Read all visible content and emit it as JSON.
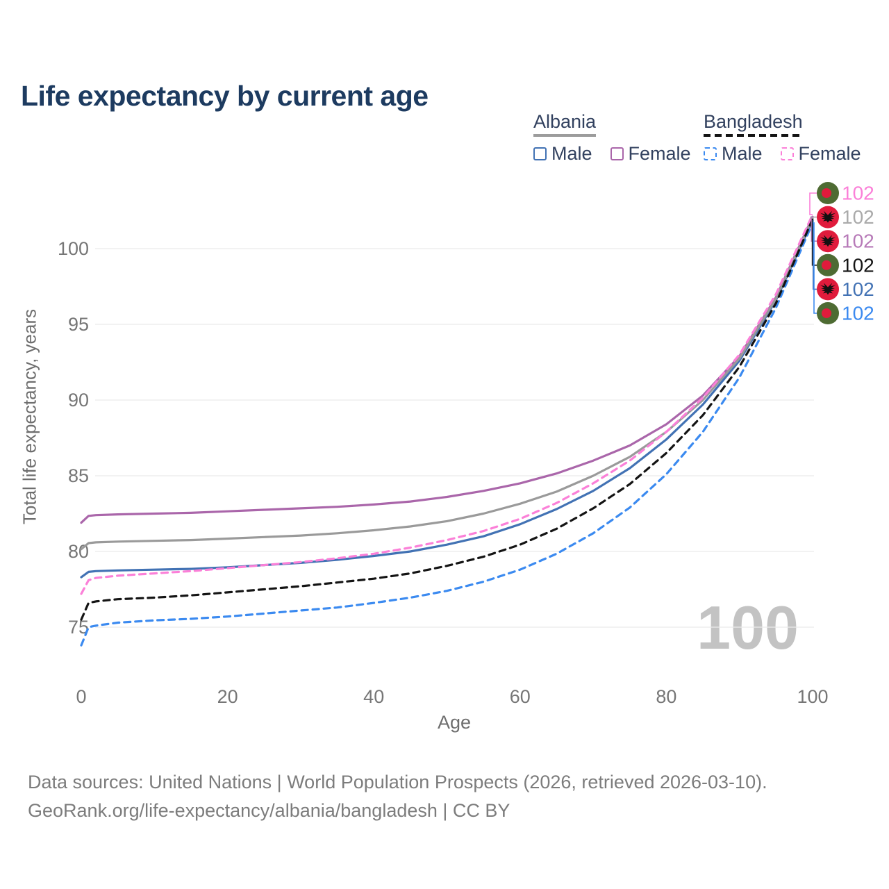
{
  "title": "Life expectancy by current age",
  "legend": {
    "groups": [
      {
        "id": "albania",
        "label": "Albania",
        "underline": "solid",
        "underline_color": "#9c9c9c",
        "items": [
          {
            "label": "Male",
            "color": "#4272b4",
            "dashed": false
          },
          {
            "label": "Female",
            "color": "#aa66aa",
            "dashed": false
          }
        ]
      },
      {
        "id": "bangladesh",
        "label": "Bangladesh",
        "underline": "dashed",
        "underline_color": "#141414",
        "items": [
          {
            "label": "Male",
            "color": "#3b8af0",
            "dashed": true
          },
          {
            "label": "Female",
            "color": "#fb80d8",
            "dashed": true
          }
        ]
      }
    ]
  },
  "chart_data": {
    "type": "line",
    "title": "Life expectancy by current age",
    "xlabel": "Age",
    "ylabel": "Total life expectancy, years",
    "x_ticks": [
      0,
      20,
      40,
      60,
      80,
      100
    ],
    "y_ticks": [
      75,
      80,
      85,
      90,
      95,
      100
    ],
    "xlim": [
      0,
      100
    ],
    "ylim": [
      73.5,
      103.5
    ],
    "grid": true,
    "legend_position": "top-right",
    "x": [
      0,
      1,
      2,
      5,
      10,
      15,
      20,
      25,
      30,
      35,
      40,
      45,
      50,
      55,
      60,
      65,
      70,
      75,
      80,
      85,
      90,
      95,
      100
    ],
    "series": [
      {
        "name": "Albania Male",
        "country": "albania",
        "sex": "male",
        "color": "#4272b4",
        "dashed": false,
        "values": [
          78.3,
          78.65,
          78.7,
          78.75,
          78.8,
          78.85,
          78.95,
          79.1,
          79.25,
          79.45,
          79.7,
          80.0,
          80.45,
          81.0,
          81.8,
          82.8,
          84.0,
          85.5,
          87.4,
          89.7,
          92.6,
          96.6,
          101.85
        ]
      },
      {
        "name": "Albania Female",
        "country": "albania",
        "sex": "female",
        "color": "#aa66aa",
        "dashed": false,
        "values": [
          81.9,
          82.35,
          82.4,
          82.45,
          82.5,
          82.55,
          82.65,
          82.75,
          82.85,
          82.95,
          83.1,
          83.3,
          83.6,
          84.0,
          84.5,
          85.15,
          86.0,
          87.0,
          88.4,
          90.3,
          92.9,
          96.8,
          102.1
        ]
      },
      {
        "name": "Albania Total",
        "country": "albania",
        "sex": "total",
        "color": "#9a9a9a",
        "dashed": false,
        "values": [
          80.15,
          80.55,
          80.6,
          80.65,
          80.7,
          80.75,
          80.85,
          80.95,
          81.05,
          81.2,
          81.4,
          81.65,
          82.0,
          82.5,
          83.15,
          83.95,
          85.0,
          86.25,
          87.9,
          90.0,
          92.75,
          96.7,
          102.0
        ]
      },
      {
        "name": "Bangladesh Male",
        "country": "bangladesh",
        "sex": "male",
        "color": "#3b8af0",
        "dashed": true,
        "values": [
          73.8,
          75.0,
          75.1,
          75.3,
          75.45,
          75.55,
          75.7,
          75.9,
          76.1,
          76.3,
          76.6,
          76.95,
          77.4,
          78.0,
          78.8,
          79.85,
          81.2,
          82.9,
          85.1,
          87.9,
          91.5,
          96.1,
          101.7
        ]
      },
      {
        "name": "Bangladesh Female",
        "country": "bangladesh",
        "sex": "female",
        "color": "#fb80d8",
        "dashed": true,
        "values": [
          77.2,
          78.1,
          78.25,
          78.4,
          78.55,
          78.7,
          78.9,
          79.1,
          79.3,
          79.55,
          79.85,
          80.25,
          80.75,
          81.35,
          82.15,
          83.2,
          84.5,
          86.0,
          87.9,
          90.15,
          93.0,
          97.0,
          102.25
        ]
      },
      {
        "name": "Bangladesh Total",
        "country": "bangladesh",
        "sex": "total",
        "color": "#141414",
        "dashed": true,
        "values": [
          75.5,
          76.6,
          76.7,
          76.85,
          76.95,
          77.1,
          77.3,
          77.5,
          77.7,
          77.95,
          78.2,
          78.55,
          79.05,
          79.65,
          80.45,
          81.5,
          82.85,
          84.45,
          86.5,
          89.0,
          92.2,
          96.4,
          101.95
        ]
      }
    ],
    "end_labels": [
      {
        "text": "102",
        "series_index": 4,
        "flag": "bangladesh",
        "color": "#fb80d8"
      },
      {
        "text": "102",
        "series_index": 2,
        "flag": "albania",
        "color": "#aaaaaa"
      },
      {
        "text": "102",
        "series_index": 1,
        "flag": "albania",
        "color": "#b77ab8"
      },
      {
        "text": "102",
        "series_index": 5,
        "flag": "bangladesh",
        "color": "#141414"
      },
      {
        "text": "102",
        "series_index": 0,
        "flag": "albania",
        "color": "#4272b4"
      },
      {
        "text": "102",
        "series_index": 3,
        "flag": "bangladesh",
        "color": "#3b8af0"
      }
    ]
  },
  "flags": {
    "albania": {
      "bg": "#e01b3c",
      "emblem": "#111111"
    },
    "bangladesh": {
      "bg": "#4e6b33",
      "dot": "#e01b3c"
    }
  },
  "watermark": "100",
  "footer": {
    "line1": "Data sources: United Nations | World Population Prospects (2026, retrieved 2026-03-10).",
    "line2": "GeoRank.org/life-expectancy/albania/bangladesh | CC BY"
  }
}
